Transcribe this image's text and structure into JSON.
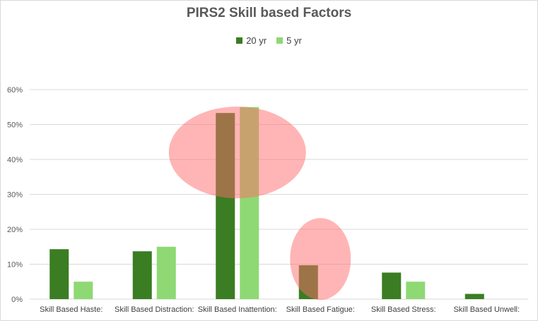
{
  "chart_data": {
    "type": "bar",
    "title": "PIRS2 Skill based Factors",
    "categories": [
      "Skill Based Haste:",
      "Skill Based Distraction:",
      "Skill Based Inattention:",
      "Skill Based Fatigue:",
      "Skill Based Stress:",
      "Skill Based Unwell:"
    ],
    "series": [
      {
        "name": "20 yr",
        "color": "#3a7d22",
        "values": [
          14.3,
          13.7,
          53.3,
          9.7,
          7.6,
          1.5
        ]
      },
      {
        "name": "5 yr",
        "color": "#8ed973",
        "values": [
          5.0,
          15.0,
          55.0,
          0,
          5.0,
          0
        ]
      }
    ],
    "ylim": [
      0,
      60
    ],
    "yticks": [
      "0%",
      "10%",
      "20%",
      "30%",
      "40%",
      "50%",
      "60%"
    ],
    "ytick_values": [
      0,
      10,
      20,
      30,
      40,
      50,
      60
    ],
    "xlabel": "",
    "ylabel": "",
    "grid": true,
    "legend_position": "top",
    "highlights": [
      {
        "category": "Skill Based Inattention:",
        "color": "#ff6b6b"
      },
      {
        "category": "Skill Based Fatigue:",
        "color": "#ff6b6b"
      }
    ]
  }
}
